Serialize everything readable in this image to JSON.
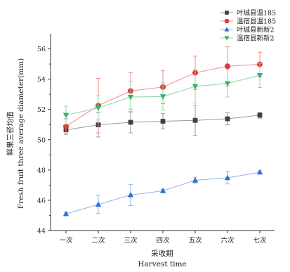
{
  "chart_data": {
    "type": "line",
    "categories": [
      "一次",
      "二次",
      "三次",
      "四次",
      "五次",
      "六次",
      "七次"
    ],
    "xlabel_cn": "采收期",
    "xlabel_en": "Harvest time",
    "ylabel_cn": "鲜果三径均值",
    "ylabel_en": "Fresh fruit three average diameter(mm)",
    "ylim": [
      44,
      57
    ],
    "yticks": [
      44,
      46,
      48,
      50,
      52,
      54,
      56
    ],
    "grid": false,
    "legend_placement": "top-right",
    "series": [
      {
        "name": "叶城县温185",
        "marker": "square",
        "color": "#404040",
        "line_color": "#9a9a9a",
        "values": [
          50.65,
          50.98,
          51.15,
          51.22,
          51.28,
          51.38,
          51.62
        ],
        "errors": [
          0.3,
          0.8,
          0.7,
          0.5,
          1.0,
          0.4,
          0.2
        ]
      },
      {
        "name": "温宿县温185",
        "marker": "circle",
        "color": "#e23b3b",
        "line_color": "#f08a8a",
        "values": [
          50.88,
          52.25,
          53.22,
          53.48,
          54.42,
          54.85,
          54.98
        ],
        "errors": [
          0.5,
          1.8,
          1.2,
          1.1,
          1.1,
          1.3,
          0.8
        ]
      },
      {
        "name": "叶城县新新2",
        "marker": "triangle-up",
        "color": "#2c6fd6",
        "line_color": "#8fb2ea",
        "values": [
          45.1,
          45.72,
          46.35,
          46.62,
          47.32,
          47.48,
          47.85
        ],
        "errors": [
          0.1,
          0.6,
          0.7,
          0.1,
          0.2,
          0.4,
          0.1
        ]
      },
      {
        "name": "温宿县新新2",
        "marker": "triangle-down",
        "color": "#35b36a",
        "line_color": "#8fd4a9",
        "values": [
          51.62,
          52.1,
          52.82,
          52.85,
          53.52,
          53.72,
          54.25
        ],
        "errors": [
          0.6,
          0.8,
          1.0,
          0.9,
          1.1,
          0.9,
          0.8
        ]
      }
    ]
  }
}
